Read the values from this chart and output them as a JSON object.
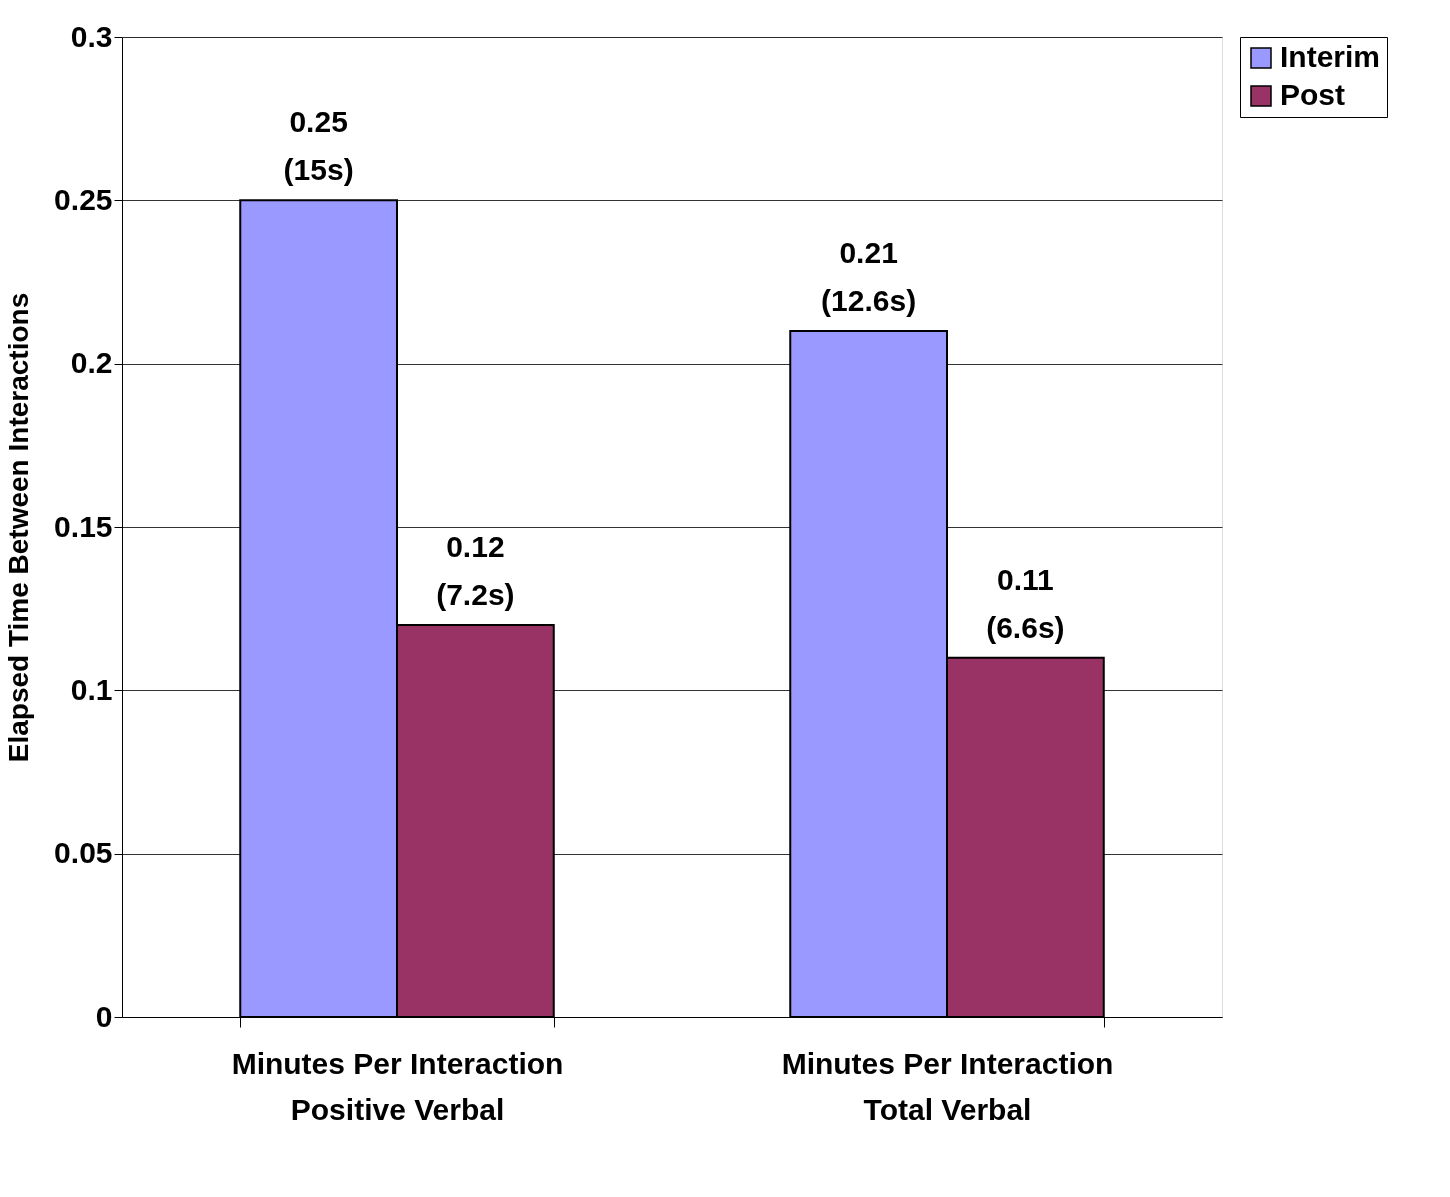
{
  "chart_data": {
    "type": "bar",
    "ylabel": "Elapsed Time Between Interactions",
    "categories": [
      "Minutes Per Interaction\nPositive Verbal",
      "Minutes Per Interaction\nTotal Verbal"
    ],
    "series": [
      {
        "name": "Interim",
        "color": "#9999ff",
        "values": [
          0.25,
          0.21
        ],
        "value_labels": [
          "0.25\n(15s)",
          "0.21\n(12.6s)"
        ]
      },
      {
        "name": "Post",
        "color": "#993366",
        "values": [
          0.12,
          0.11
        ],
        "value_labels": [
          "0.12\n(7.2s)",
          "0.11\n(6.6s)"
        ]
      }
    ],
    "ylim": [
      0,
      0.3
    ],
    "yticks": [
      0,
      0.05,
      0.1,
      0.15,
      0.2,
      0.25,
      0.3
    ],
    "grid": "y",
    "legend": "right"
  }
}
